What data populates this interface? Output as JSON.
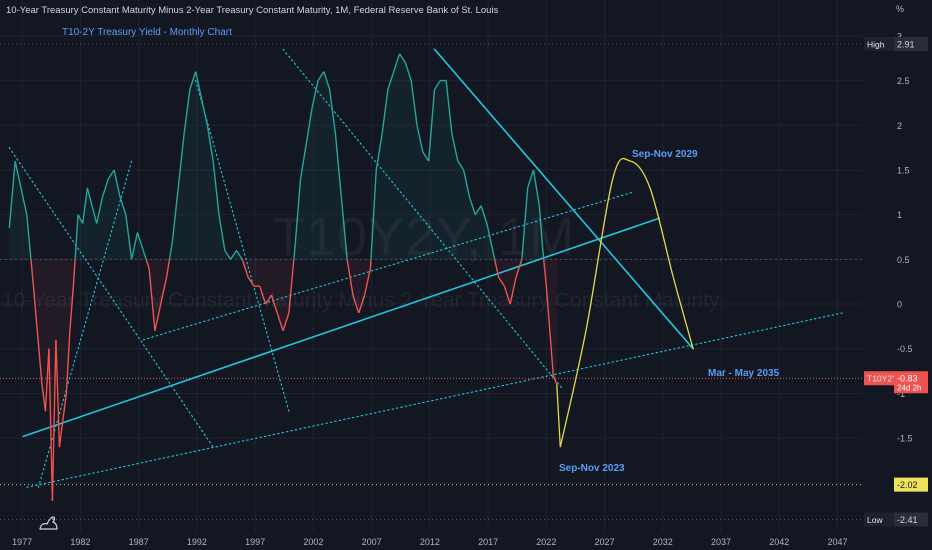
{
  "header": {
    "title": "10-Year Treasury Constant Maturity Minus 2-Year Treasury Constant Maturity, 1M, Federal Reserve Bank of St. Louis",
    "subtitle": "T10-2Y Treasury Yield - Monthly Chart"
  },
  "watermark": {
    "symbol": "T10Y2Y, 1M",
    "description": "10-Year Treasury Constant Maturity Minus 2-Year Treasury Constant Maturity"
  },
  "price_scale": {
    "unit_label": "%",
    "ticks": [
      "3",
      "2.5",
      "2",
      "1.5",
      "1",
      "0.5",
      "0",
      "-0.5",
      "-1",
      "-1.5",
      "-2"
    ],
    "high_label": "High",
    "high_value": "2.91",
    "low_label": "Low",
    "low_value": "-2.41",
    "current_symbol": "T10Y2Y",
    "current_value": "-0.83",
    "current_countdown": "24d 2h",
    "level_marker": "-2.02"
  },
  "time_scale": {
    "ticks": [
      "1977",
      "1982",
      "1987",
      "1992",
      "1997",
      "2002",
      "2007",
      "2012",
      "2017",
      "2022",
      "2027",
      "2032",
      "2037",
      "2042",
      "2047"
    ]
  },
  "annotations": {
    "low_2023": "Sep-Nov 2023",
    "peak_2029": "Sep-Nov 2029",
    "target_2035": "Mar - May 2035"
  },
  "colors": {
    "background": "#131722",
    "positive": "#26a69a",
    "negative": "#ef5350",
    "trendline": "#22c6e0",
    "projection": "#e6d84a",
    "annotation": "#5b9cf6"
  },
  "chart_data": {
    "type": "line",
    "title": "T10-2Y Treasury Yield - Monthly Chart",
    "ylabel": "%",
    "ylim": [
      -2.5,
      3.0
    ],
    "xlim": [
      1976,
      2050
    ],
    "x": [
      1976.5,
      1977.0,
      1977.5,
      1978.0,
      1978.5,
      1978.9,
      1979.3,
      1979.6,
      1979.9,
      1980.2,
      1980.5,
      1980.8,
      1981.1,
      1981.4,
      1981.7,
      1982.0,
      1982.4,
      1982.8,
      1983.2,
      1983.6,
      1984.0,
      1984.5,
      1985.0,
      1985.5,
      1986.0,
      1986.5,
      1987.0,
      1987.5,
      1988.0,
      1988.5,
      1989.0,
      1989.5,
      1990.0,
      1990.5,
      1991.0,
      1991.5,
      1992.0,
      1992.5,
      1993.0,
      1993.5,
      1994.0,
      1994.5,
      1995.0,
      1995.5,
      1996.0,
      1996.5,
      1997.0,
      1997.5,
      1998.0,
      1998.5,
      1999.0,
      1999.5,
      2000.0,
      2000.5,
      2001.0,
      2001.5,
      2002.0,
      2002.5,
      2003.0,
      2003.5,
      2004.0,
      2004.5,
      2005.0,
      2005.5,
      2006.0,
      2006.5,
      2007.0,
      2007.5,
      2008.0,
      2008.5,
      2009.0,
      2009.5,
      2010.0,
      2010.5,
      2011.0,
      2011.5,
      2012.0,
      2012.5,
      2013.0,
      2013.5,
      2014.0,
      2014.5,
      2015.0,
      2015.5,
      2016.0,
      2016.5,
      2017.0,
      2017.5,
      2018.0,
      2018.5,
      2019.0,
      2019.5,
      2020.0,
      2020.5,
      2021.0,
      2021.5,
      2022.0,
      2022.3,
      2022.6,
      2022.9,
      2023.2,
      2023.5
    ],
    "series": [
      {
        "values": [
          0.85,
          1.6,
          1.3,
          1.0,
          0.3,
          -0.3,
          -0.9,
          -1.2,
          -0.5,
          -2.2,
          -0.4,
          -1.6,
          -1.3,
          -1.0,
          -0.3,
          0.2,
          1.0,
          0.9,
          1.3,
          1.1,
          0.9,
          1.2,
          1.4,
          1.5,
          1.2,
          1.0,
          0.5,
          0.8,
          0.6,
          0.4,
          -0.3,
          0.0,
          0.3,
          0.7,
          1.3,
          1.9,
          2.4,
          2.6,
          2.3,
          2.0,
          1.6,
          1.0,
          0.6,
          0.5,
          0.6,
          0.5,
          0.3,
          0.2,
          0.2,
          0.0,
          0.1,
          -0.1,
          -0.3,
          -0.1,
          0.6,
          1.4,
          1.8,
          2.2,
          2.5,
          2.6,
          2.4,
          1.9,
          1.2,
          0.5,
          0.1,
          -0.1,
          0.1,
          0.4,
          1.5,
          1.9,
          2.4,
          2.6,
          2.8,
          2.7,
          2.5,
          2.0,
          1.7,
          1.6,
          2.4,
          2.5,
          2.5,
          1.9,
          1.6,
          1.5,
          1.2,
          1.0,
          1.1,
          0.9,
          0.6,
          0.3,
          0.2,
          0.0,
          0.3,
          0.5,
          1.3,
          1.5,
          1.1,
          0.6,
          0.2,
          -0.3,
          -0.8,
          -0.9
        ]
      }
    ],
    "projection": {
      "x": [
        2023.8,
        2026.0,
        2028.3,
        2029.8,
        2031.5,
        2033.5,
        2035.2
      ],
      "y": [
        -1.6,
        -0.3,
        1.4,
        1.6,
        1.3,
        0.3,
        -0.5
      ]
    },
    "trendlines": [
      {
        "x": [
          1977.7,
          2032.3
        ],
        "y": [
          -1.48,
          0.96
        ]
      },
      {
        "x": [
          2013.0,
          2035.2
        ],
        "y": [
          2.85,
          -0.5
        ]
      },
      {
        "x": [
          1978.0,
          2048.0
        ],
        "y": [
          -2.05,
          -0.1
        ]
      },
      {
        "x": [
          1988.0,
          2030.0
        ],
        "y": [
          -0.4,
          1.25
        ]
      },
      {
        "x": [
          1976.5,
          1994.0
        ],
        "y": [
          1.75,
          -1.6
        ]
      },
      {
        "x": [
          1992.5,
          2000.5
        ],
        "y": [
          2.5,
          -1.2
        ]
      },
      {
        "x": [
          2000.0,
          2024.0
        ],
        "y": [
          2.85,
          -0.95
        ]
      },
      {
        "x": [
          1979.0,
          1987.0
        ],
        "y": [
          -2.05,
          1.6
        ]
      }
    ],
    "reference_levels": [
      0.5,
      -2.02,
      -0.83,
      2.91,
      -2.41
    ]
  }
}
